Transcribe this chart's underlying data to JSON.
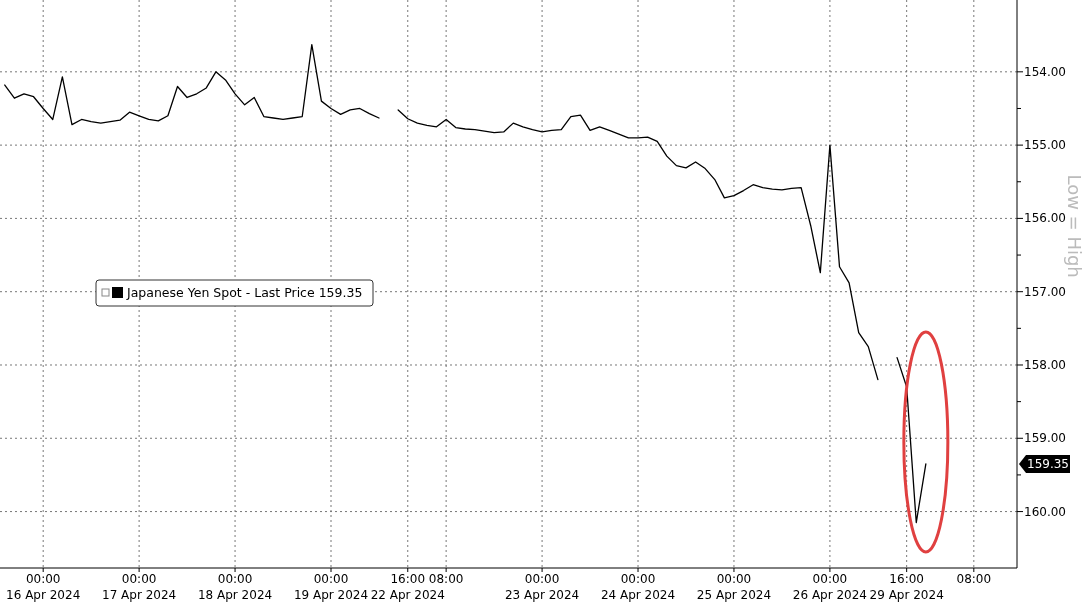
{
  "chart_data": {
    "type": "line",
    "categories": [
      null,
      null,
      null,
      null,
      "00:00\n16 Apr 2024",
      null,
      null,
      null,
      null,
      null,
      null,
      null,
      null,
      null,
      "00:00\n17 Apr 2024",
      null,
      null,
      null,
      null,
      null,
      null,
      null,
      null,
      null,
      "00:00\n18 Apr 2024",
      null,
      null,
      null,
      null,
      null,
      null,
      null,
      null,
      null,
      "00:00\n19 Apr 2024",
      null,
      null,
      null,
      null,
      null,
      null,
      null,
      "16:00\n22 Apr 2024",
      null,
      null,
      null,
      "08:00",
      null,
      null,
      null,
      null,
      null,
      null,
      null,
      null,
      null,
      "00:00\n23 Apr 2024",
      null,
      null,
      null,
      null,
      null,
      null,
      null,
      null,
      null,
      "00:00\n24 Apr 2024",
      null,
      null,
      null,
      null,
      null,
      null,
      null,
      null,
      null,
      "00:00\n25 Apr 2024",
      null,
      null,
      null,
      null,
      null,
      null,
      null,
      null,
      null,
      "00:00\n26 Apr 2024",
      null,
      null,
      null,
      null,
      null,
      null,
      null,
      "16:00\n29 Apr 2024",
      null,
      null,
      null,
      null,
      null,
      null,
      "08:00",
      null,
      null,
      null,
      null
    ],
    "ylim": [
      160.77,
      153.02
    ],
    "yticks": [
      {
        "value": 154,
        "label": "154.00"
      },
      {
        "value": 154.5,
        "label": null
      },
      {
        "value": 155,
        "label": "155.00"
      },
      {
        "value": 155.5,
        "label": null
      },
      {
        "value": 156,
        "label": "156.00"
      },
      {
        "value": 156.5,
        "label": null
      },
      {
        "value": 157,
        "label": "157.00"
      },
      {
        "value": 157.5,
        "label": null
      },
      {
        "value": 158,
        "label": "158.00"
      },
      {
        "value": 158.5,
        "label": null
      },
      {
        "value": 159,
        "label": "159.00"
      },
      {
        "value": 159.5,
        "label": null
      },
      {
        "value": 160,
        "label": "160.00"
      }
    ],
    "grid": true,
    "legend": "left",
    "line_style": "solid",
    "annotations": [
      "Low = High",
      "159.35"
    ],
    "series": [
      {
        "name": "Japanese Yen Spot - Last Price 159.35",
        "color": "#000000",
        "values": [
          154.18,
          154.36,
          154.3,
          154.34,
          154.5,
          154.65,
          154.07,
          154.72,
          154.65,
          154.68,
          154.7,
          154.68,
          154.66,
          154.55,
          154.6,
          154.65,
          154.67,
          154.6,
          154.2,
          154.35,
          154.3,
          154.22,
          154.0,
          154.11,
          154.3,
          154.45,
          154.35,
          154.61,
          154.63,
          154.65,
          154.63,
          154.61,
          153.63,
          154.4,
          154.5,
          154.58,
          154.52,
          154.5,
          154.57,
          154.63,
          null,
          154.52,
          154.64,
          154.7,
          154.73,
          154.75,
          154.65,
          154.76,
          154.78,
          154.79,
          154.81,
          154.83,
          154.82,
          154.7,
          154.75,
          154.79,
          154.82,
          154.8,
          154.79,
          154.61,
          154.59,
          154.8,
          154.75,
          154.8,
          154.85,
          154.9,
          154.9,
          154.89,
          154.95,
          155.15,
          155.28,
          155.31,
          155.23,
          155.32,
          155.47,
          155.72,
          155.69,
          155.62,
          155.54,
          155.58,
          155.6,
          155.61,
          155.59,
          155.58,
          156.1,
          156.74,
          155.0,
          156.66,
          156.88,
          157.56,
          157.75,
          158.2,
          null,
          157.9,
          158.3,
          160.15,
          159.35,
          null,
          null,
          null,
          null,
          null,
          null,
          null,
          null,
          null
        ]
      }
    ]
  }
}
